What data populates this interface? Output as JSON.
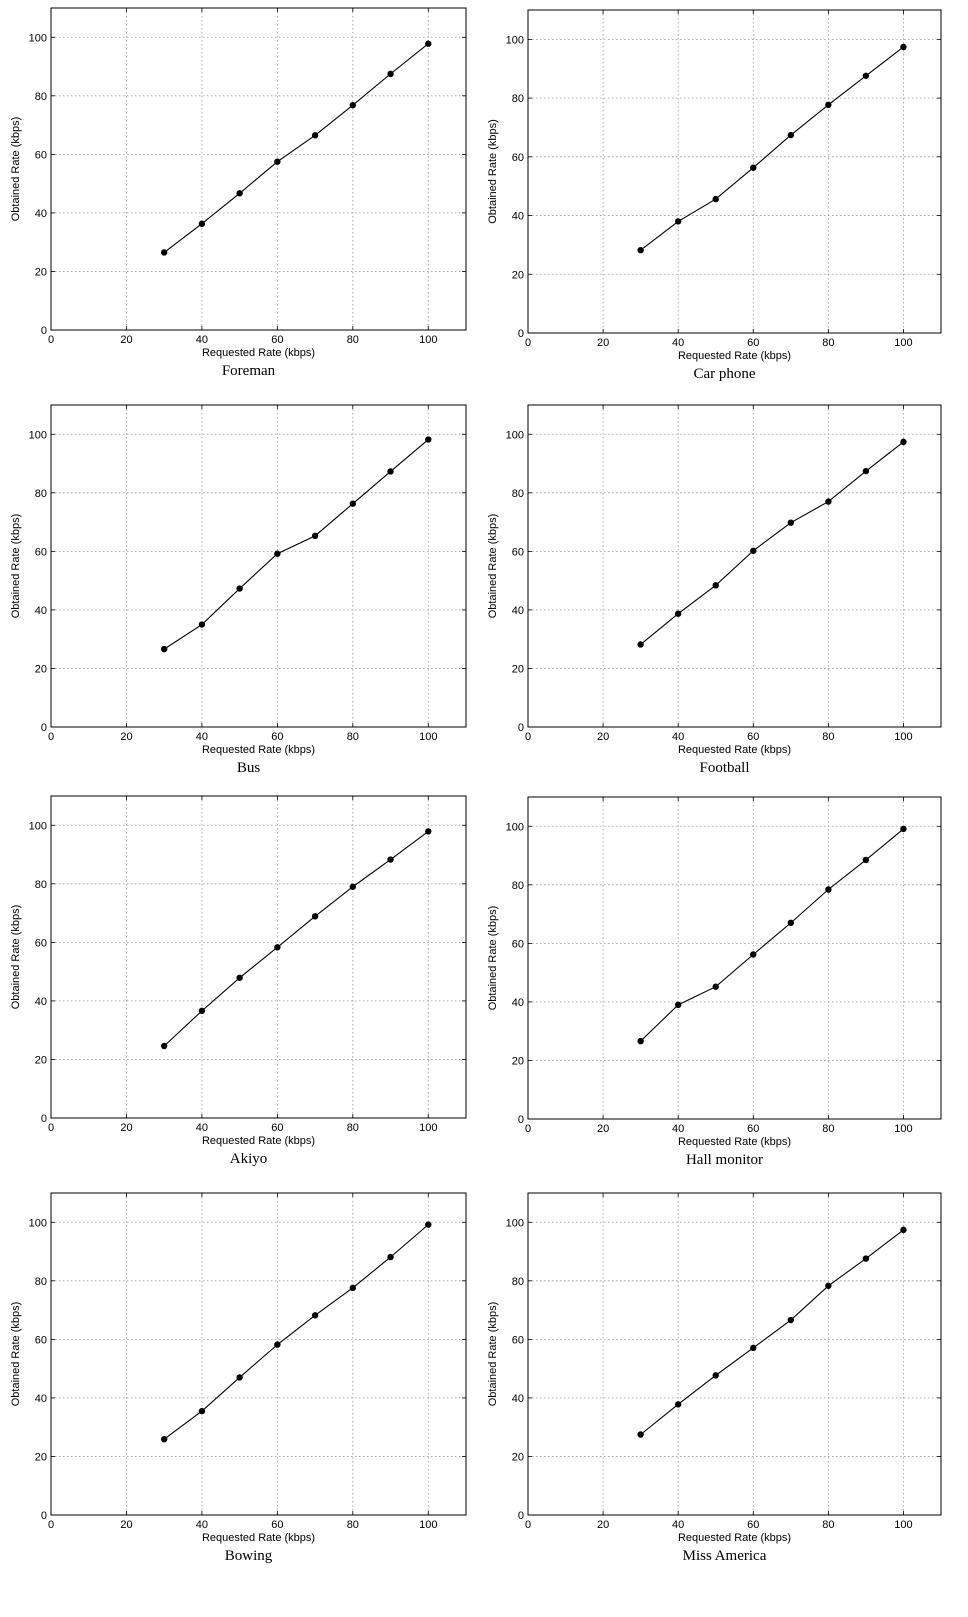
{
  "chart_data": [
    {
      "type": "line",
      "caption": "Foreman",
      "xlabel": "Requested Rate (kbps)",
      "ylabel": "Obtained Rate (kbps)",
      "xlim": [
        0,
        110
      ],
      "ylim": [
        0,
        110
      ],
      "xticks": [
        0,
        20,
        40,
        60,
        80,
        100
      ],
      "yticks": [
        0,
        20,
        40,
        60,
        80,
        100
      ],
      "grid": true,
      "x": [
        30,
        40,
        50,
        60,
        70,
        80,
        90,
        100
      ],
      "y": [
        26.5,
        36.3,
        46.7,
        57.5,
        66.5,
        76.8,
        87.5,
        97.8
      ]
    },
    {
      "type": "line",
      "caption": "Car phone",
      "xlabel": "Requested Rate (kbps)",
      "ylabel": "Obtained Rate (kbps)",
      "xlim": [
        0,
        110
      ],
      "ylim": [
        0,
        110
      ],
      "xticks": [
        0,
        20,
        40,
        60,
        80,
        100
      ],
      "yticks": [
        0,
        20,
        40,
        60,
        80,
        100
      ],
      "grid": true,
      "x": [
        30,
        40,
        50,
        60,
        70,
        80,
        90,
        100
      ],
      "y": [
        28.2,
        38,
        45.6,
        56.3,
        67.4,
        77.7,
        87.6,
        97.4
      ]
    },
    {
      "type": "line",
      "caption": "Bus",
      "xlabel": "Requested Rate (kbps)",
      "ylabel": "Obtained Rate (kbps)",
      "xlim": [
        0,
        110
      ],
      "ylim": [
        0,
        110
      ],
      "xticks": [
        0,
        20,
        40,
        60,
        80,
        100
      ],
      "yticks": [
        0,
        20,
        40,
        60,
        80,
        100
      ],
      "grid": true,
      "x": [
        30,
        40,
        50,
        60,
        70,
        80,
        90,
        100
      ],
      "y": [
        26.6,
        35,
        47.3,
        59.2,
        65.3,
        76.3,
        87.3,
        98.2
      ]
    },
    {
      "type": "line",
      "caption": "Football",
      "xlabel": "Requested Rate (kbps)",
      "ylabel": "Obtained Rate (kbps)",
      "xlim": [
        0,
        110
      ],
      "ylim": [
        0,
        110
      ],
      "xticks": [
        0,
        20,
        40,
        60,
        80,
        100
      ],
      "yticks": [
        0,
        20,
        40,
        60,
        80,
        100
      ],
      "grid": true,
      "x": [
        30,
        40,
        50,
        60,
        70,
        80,
        90,
        100
      ],
      "y": [
        28.2,
        38.7,
        48.4,
        60.2,
        69.8,
        77,
        87.4,
        97.4
      ]
    },
    {
      "type": "line",
      "caption": "Akiyo",
      "xlabel": "Requested Rate (kbps)",
      "ylabel": "Obtained Rate (kbps)",
      "xlim": [
        0,
        110
      ],
      "ylim": [
        0,
        110
      ],
      "xticks": [
        0,
        20,
        40,
        60,
        80,
        100
      ],
      "yticks": [
        0,
        20,
        40,
        60,
        80,
        100
      ],
      "grid": true,
      "x": [
        30,
        40,
        50,
        60,
        70,
        80,
        90,
        100
      ],
      "y": [
        24.6,
        36.6,
        47.9,
        58.3,
        68.9,
        79,
        88.3,
        97.9
      ]
    },
    {
      "type": "line",
      "caption": "Hall monitor",
      "xlabel": "Requested Rate (kbps)",
      "ylabel": "Obtained Rate (kbps)",
      "xlim": [
        0,
        110
      ],
      "ylim": [
        0,
        110
      ],
      "xticks": [
        0,
        20,
        40,
        60,
        80,
        100
      ],
      "yticks": [
        0,
        20,
        40,
        60,
        80,
        100
      ],
      "grid": true,
      "x": [
        30,
        40,
        50,
        60,
        70,
        80,
        90,
        100
      ],
      "y": [
        26.6,
        39,
        45.2,
        56.2,
        67,
        78.4,
        88.5,
        99.1
      ]
    },
    {
      "type": "line",
      "caption": "Bowing",
      "xlabel": "Requested Rate (kbps)",
      "ylabel": "Obtained Rate (kbps)",
      "xlim": [
        0,
        110
      ],
      "ylim": [
        0,
        110
      ],
      "xticks": [
        0,
        20,
        40,
        60,
        80,
        100
      ],
      "yticks": [
        0,
        20,
        40,
        60,
        80,
        100
      ],
      "grid": true,
      "x": [
        30,
        40,
        50,
        60,
        70,
        80,
        90,
        100
      ],
      "y": [
        25.9,
        35.5,
        47,
        58.2,
        68.2,
        77.6,
        88.1,
        99.2
      ]
    },
    {
      "type": "line",
      "caption": "Miss America",
      "xlabel": "Requested Rate (kbps)",
      "ylabel": "Obtained Rate (kbps)",
      "xlim": [
        0,
        110
      ],
      "ylim": [
        0,
        110
      ],
      "xticks": [
        0,
        20,
        40,
        60,
        80,
        100
      ],
      "yticks": [
        0,
        20,
        40,
        60,
        80,
        100
      ],
      "grid": true,
      "x": [
        30,
        40,
        50,
        60,
        70,
        80,
        90,
        100
      ],
      "y": [
        27.5,
        37.8,
        47.7,
        57.1,
        66.6,
        78.3,
        87.6,
        97.4
      ]
    }
  ]
}
